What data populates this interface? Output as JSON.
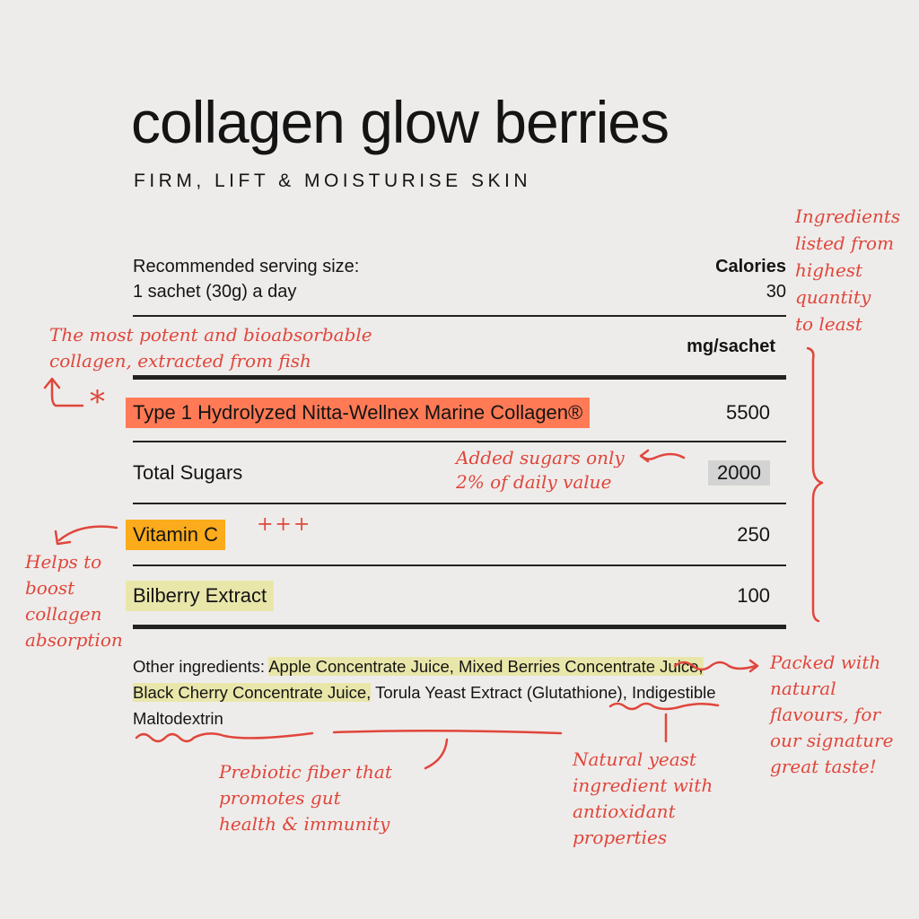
{
  "header": {
    "title": "collagen glow berries",
    "subtitle": "FIRM, LIFT & MOISTURISE SKIN"
  },
  "serving": {
    "label": "Recommended serving size:",
    "value": "1 sachet (30g) a day",
    "calories_label": "Calories",
    "calories_value": "30"
  },
  "table": {
    "unit_header": "mg/sachet",
    "rows": [
      {
        "name": "Type 1 Hydrolyzed Nitta-Wellnex Marine Collagen®",
        "value": "5500",
        "highlight": "#ff7a55"
      },
      {
        "name": "Total Sugars",
        "value": "2000",
        "highlight": "#d3d3d3"
      },
      {
        "name": "Vitamin C",
        "value": "250",
        "highlight": "#fbab1b"
      },
      {
        "name": "Bilberry Extract",
        "value": "100",
        "highlight": "#e9e6aa"
      }
    ]
  },
  "other_ingredients": {
    "label": "Other ingredients:",
    "highlighted": "Apple Concentrate Juice, Mixed Berries Concentrate Juice, Black Cherry Concentrate Juice,",
    "part1": "Torula Yeast Extract (Glutathione),",
    "part2": "Indigestible Maltodextrin"
  },
  "annotations": {
    "order": [
      "Ingredients",
      "listed from",
      "highest",
      "quantity",
      "to least"
    ],
    "collagen": [
      "The most potent and bioabsorbable",
      "collagen, extracted from fish"
    ],
    "sugars": [
      "Added sugars only",
      "2% of daily value"
    ],
    "vitamin_marks": "+++",
    "vitamin": [
      "Helps to",
      "boost",
      "collagen",
      "absorption"
    ],
    "flavours": [
      "Packed with",
      "natural",
      "flavours, for",
      "our signature",
      "great taste!"
    ],
    "prebiotic": [
      "Prebiotic fiber that",
      "promotes gut",
      "health & immunity"
    ],
    "yeast": [
      "Natural yeast",
      "ingredient with",
      "antioxidant",
      "properties"
    ],
    "asterisk": "*"
  },
  "colors": {
    "background": "#eeecea",
    "annotation": "#e0463c",
    "text": "#141414"
  }
}
